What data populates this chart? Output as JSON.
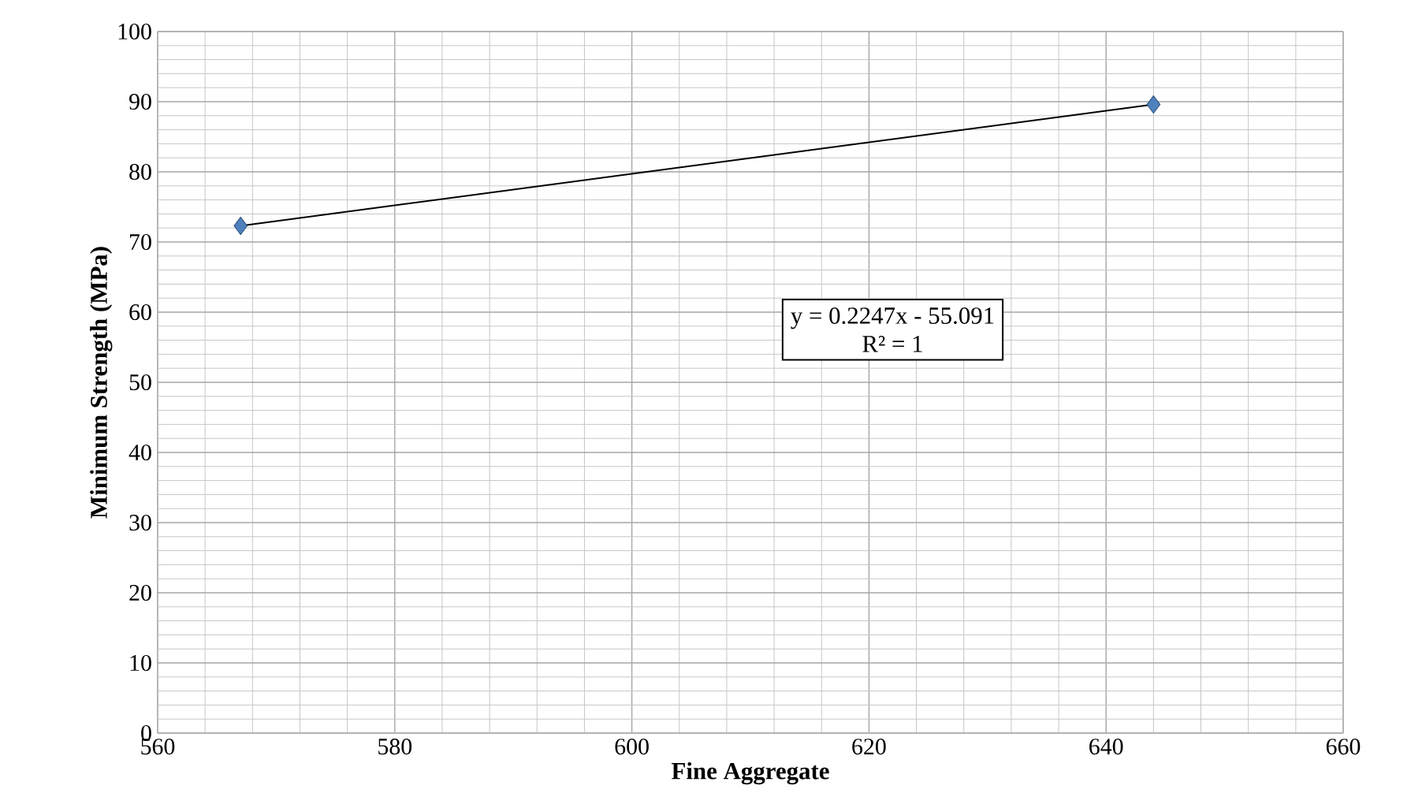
{
  "chart_data": {
    "type": "scatter",
    "xlabel": "Fine Aggregate",
    "ylabel": "Minimum Strength (MPa)",
    "xlim": [
      560,
      660
    ],
    "xticks": [
      560,
      580,
      600,
      620,
      640,
      660
    ],
    "ylim": [
      0,
      100
    ],
    "yticks": [
      0,
      10,
      20,
      30,
      40,
      50,
      60,
      70,
      80,
      90,
      100
    ],
    "grid": true,
    "x": [
      567,
      644
    ],
    "series": [
      {
        "color": "#4f81bd",
        "marker": "diamond",
        "values": [
          72.3,
          89.6
        ]
      },
      {
        "type": "line",
        "color": "#000000",
        "line_style": "solid",
        "marker": "none",
        "values": [
          72.3,
          89.6
        ]
      }
    ],
    "annotations": [
      "y = 0.2247x - 55.091",
      "R² = 1"
    ]
  }
}
